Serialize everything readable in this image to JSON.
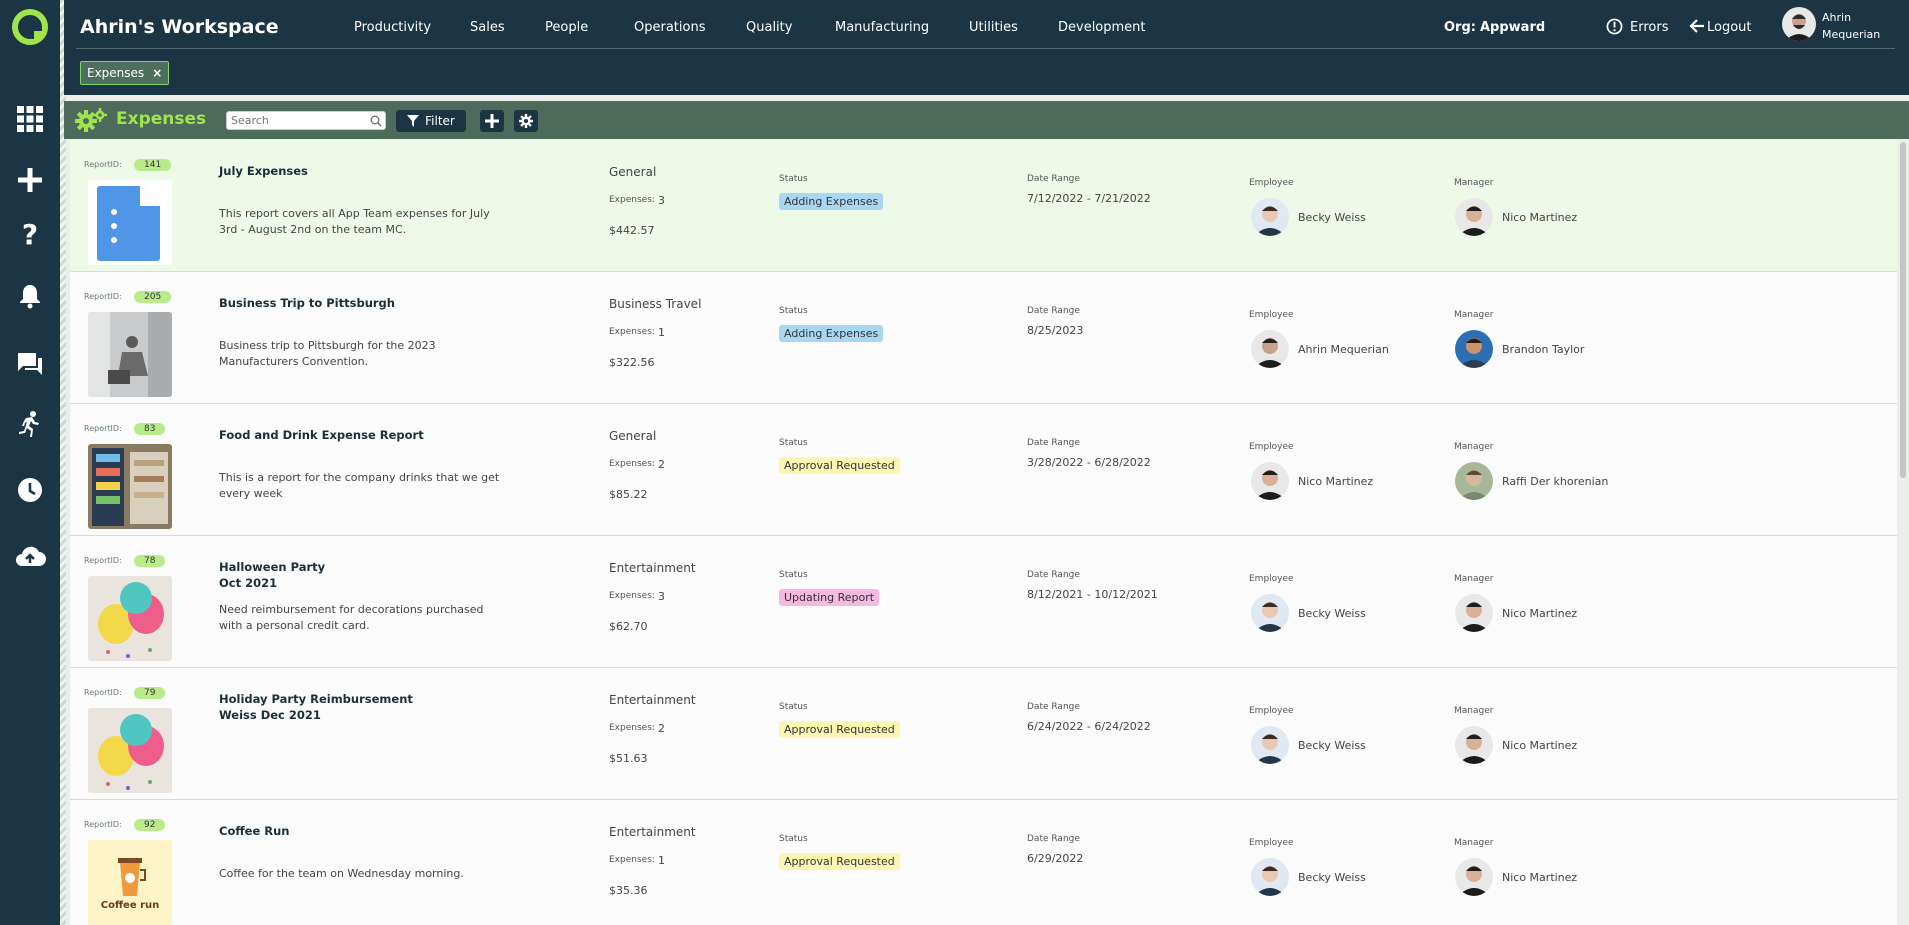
{
  "app": {
    "workspace_title": "Ahrin's Workspace",
    "menu": [
      "Productivity",
      "Sales",
      "People",
      "Operations",
      "Quality",
      "Manufacturing",
      "Utilities",
      "Development"
    ],
    "org_label": "Org:",
    "org_value": "Appward",
    "errors_label": "Errors",
    "logout_label": "Logout",
    "user_name_line1": "Ahrin",
    "user_name_line2": "Mequerian",
    "accent": "#9fe44d",
    "nav_bg": "#1b3544"
  },
  "sidebar": {
    "icons": [
      "apps-grid-icon",
      "plus-icon",
      "help-icon",
      "bell-icon",
      "chat-icon",
      "running-person-icon",
      "clock-icon",
      "cloud-upload-icon"
    ]
  },
  "tabs": [
    {
      "label": "Expenses",
      "close": "×"
    }
  ],
  "toolbar": {
    "title": "Expenses",
    "search_placeholder": "Search",
    "filter_label": "Filter"
  },
  "labels": {
    "report_id": "ReportID:",
    "expenses": "Expenses:",
    "status": "Status",
    "date_range": "Date Range",
    "employee": "Employee",
    "manager": "Manager"
  },
  "reports": [
    {
      "id": "141",
      "title": "July Expenses",
      "description": "This report covers all App Team expenses for July 3rd - August 2nd on the team MC.",
      "category": "General",
      "expenses": "3",
      "amount": "$442.57",
      "status": "Adding Expenses",
      "status_color": "blue",
      "date_range": "7/12/2022  -  7/21/2022",
      "employee": "Becky Weiss",
      "manager": "Nico Martinez",
      "thumb": "document"
    },
    {
      "id": "205",
      "title": "Business Trip to Pittsburgh",
      "description": "Business trip to Pittsburgh for the 2023 Manufacturers Convention.",
      "category": "Business Travel",
      "expenses": "1",
      "amount": "$322.56",
      "status": "Adding Expenses",
      "status_color": "blue",
      "date_range": "8/25/2023",
      "employee": "Ahrin Mequerian",
      "manager": "Brandon Taylor",
      "thumb": "photo-gray"
    },
    {
      "id": "83",
      "title": "Food and Drink Expense Report",
      "description": "This is a report for the company drinks that we get every week",
      "category": "General",
      "expenses": "2",
      "amount": "$85.22",
      "status": "Approval Requested",
      "status_color": "yellow",
      "date_range": "3/28/2022  -  6/28/2022",
      "employee": "Nico Martinez",
      "manager": "Raffi Der khorenian",
      "thumb": "photo-fridge"
    },
    {
      "id": "78",
      "title": "Halloween Party\nOct 2021",
      "description": "Need reimbursement for decorations purchased with a personal credit card.",
      "category": "Entertainment",
      "expenses": "3",
      "amount": "$62.70",
      "status": "Updating Report",
      "status_color": "pink",
      "date_range": "8/12/2021  -  10/12/2021",
      "employee": "Becky Weiss",
      "manager": "Nico Martinez",
      "thumb": "photo-balloons"
    },
    {
      "id": "79",
      "title": "Holiday Party Reimbursement\nWeiss Dec 2021",
      "description": "",
      "category": "Entertainment",
      "expenses": "2",
      "amount": "$51.63",
      "status": "Approval Requested",
      "status_color": "yellow",
      "date_range": "6/24/2022  -  6/24/2022",
      "employee": "Becky Weiss",
      "manager": "Nico Martinez",
      "thumb": "photo-balloons"
    },
    {
      "id": "92",
      "title": "Coffee Run",
      "description": "Coffee for the team on Wednesday morning.",
      "category": "Entertainment",
      "expenses": "1",
      "amount": "$35.36",
      "status": "Approval Requested",
      "status_color": "yellow",
      "date_range": "6/29/2022",
      "employee": "Becky Weiss",
      "manager": "Nico Martinez",
      "thumb": "coffee",
      "thumb_text": "Coffee run"
    }
  ]
}
